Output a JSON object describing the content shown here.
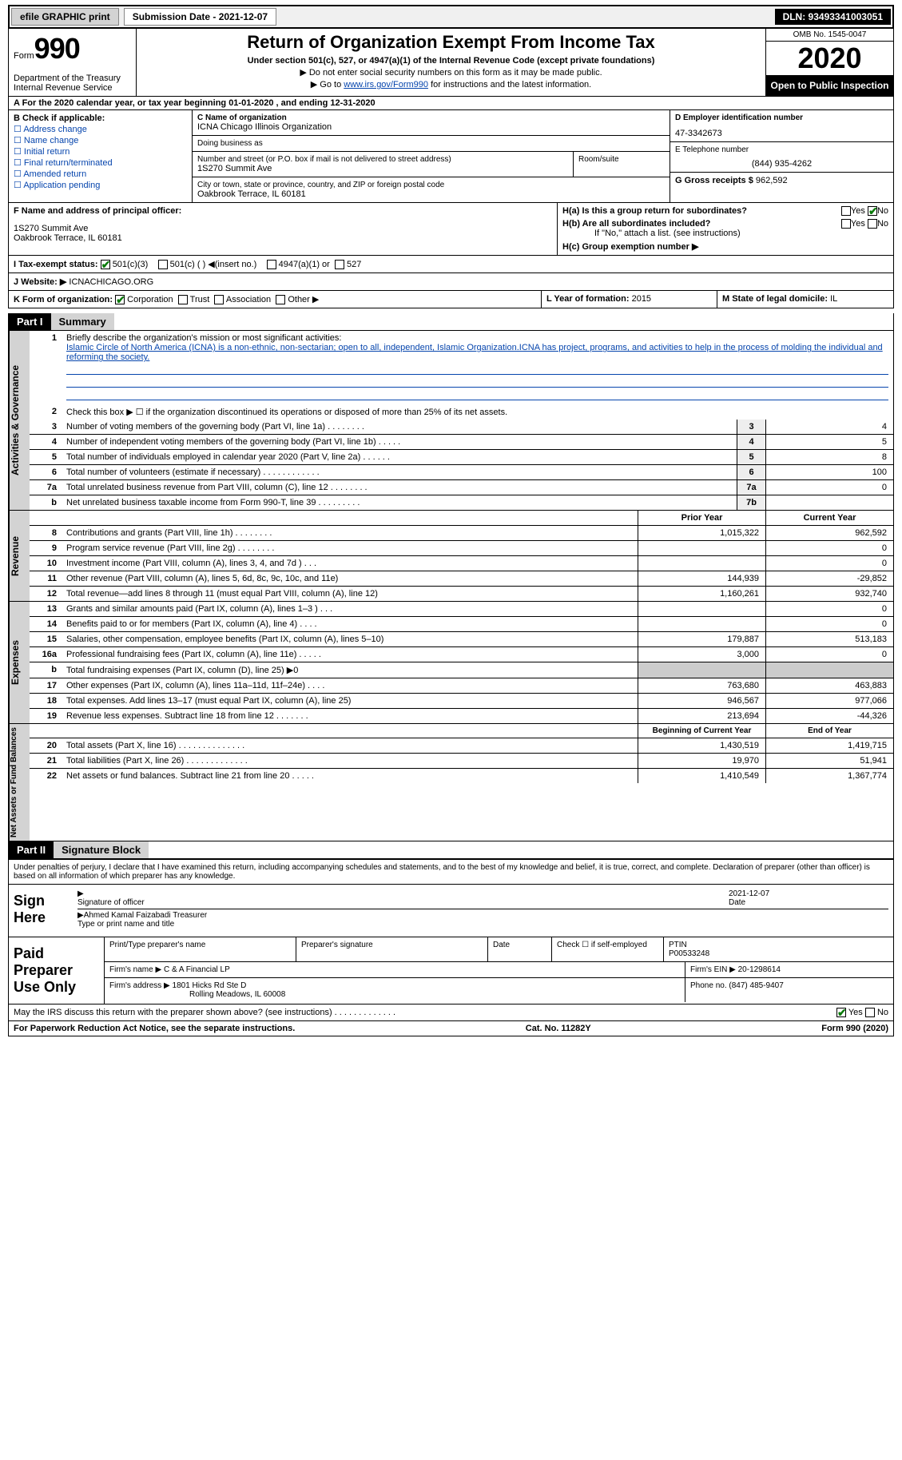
{
  "topbar": {
    "efile_btn": "efile GRAPHIC print",
    "submission_label": "Submission Date - 2021-12-07",
    "dln": "DLN: 93493341003051"
  },
  "header": {
    "form_label": "Form",
    "form_num": "990",
    "dept": "Department of the Treasury\nInternal Revenue Service",
    "title": "Return of Organization Exempt From Income Tax",
    "subtitle": "Under section 501(c), 527, or 4947(a)(1) of the Internal Revenue Code (except private foundations)",
    "note1": "▶ Do not enter social security numbers on this form as it may be made public.",
    "note2_pre": "▶ Go to ",
    "note2_link": "www.irs.gov/Form990",
    "note2_post": " for instructions and the latest information.",
    "omb": "OMB No. 1545-0047",
    "year": "2020",
    "inspection": "Open to Public Inspection"
  },
  "row_a": "A For the 2020 calendar year, or tax year beginning 01-01-2020   , and ending 12-31-2020",
  "col_b": {
    "head": "B Check if applicable:",
    "items": [
      "Address change",
      "Name change",
      "Initial return",
      "Final return/terminated",
      "Amended return",
      "Application pending"
    ]
  },
  "col_c": {
    "name_lbl": "C Name of organization",
    "name": "ICNA Chicago Illinois Organization",
    "dba_lbl": "Doing business as",
    "dba": "",
    "addr_lbl": "Number and street (or P.O. box if mail is not delivered to street address)",
    "addr": "1S270 Summit Ave",
    "room_lbl": "Room/suite",
    "city_lbl": "City or town, state or province, country, and ZIP or foreign postal code",
    "city": "Oakbrook Terrace, IL  60181"
  },
  "col_d": {
    "ein_lbl": "D Employer identification number",
    "ein": "47-3342673",
    "tel_lbl": "E Telephone number",
    "tel": "(844) 935-4262",
    "gross_lbl": "G Gross receipts $",
    "gross": "962,592"
  },
  "row_f": {
    "officer_lbl": "F  Name and address of principal officer:",
    "officer_name": "",
    "officer_addr": "1S270 Summit Ave\nOakbrook Terrace, IL  60181"
  },
  "row_h": {
    "ha": "H(a)  Is this a group return for subordinates?",
    "hb": "H(b)  Are all subordinates included?",
    "hb_note": "If \"No,\" attach a list. (see instructions)",
    "hc": "H(c)  Group exemption number ▶"
  },
  "row_i": {
    "label": "I    Tax-exempt status:",
    "opts": [
      "501(c)(3)",
      "501(c) (  ) ◀(insert no.)",
      "4947(a)(1) or",
      "527"
    ]
  },
  "row_j": {
    "label": "J    Website: ▶",
    "value": "ICNACHICAGO.ORG"
  },
  "row_k": {
    "label": "K Form of organization:",
    "opts": [
      "Corporation",
      "Trust",
      "Association",
      "Other ▶"
    ],
    "l_label": "L Year of formation:",
    "l_val": "2015",
    "m_label": "M State of legal domicile:",
    "m_val": "IL"
  },
  "parts": {
    "p1_hdr": "Part I",
    "p1_title": "Summary",
    "p2_hdr": "Part II",
    "p2_title": "Signature Block"
  },
  "summary": {
    "mission_lbl": "Briefly describe the organization's mission or most significant activities:",
    "mission": "Islamic Circle of North America (ICNA) is a non-ethnic, non-sectarian; open to all, independent, Islamic Organization.ICNA has project, programs, and activities to help in the process of molding the individual and reforming the society.",
    "line2": "Check this box ▶ ☐  if the organization discontinued its operations or disposed of more than 25% of its net assets.",
    "lines_gov": [
      {
        "n": "3",
        "d": "Number of voting members of the governing body (Part VI, line 1a)   .    .    .    .    .    .    .    .",
        "b": "3",
        "v": "4"
      },
      {
        "n": "4",
        "d": "Number of independent voting members of the governing body (Part VI, line 1b)    .    .    .    .    .",
        "b": "4",
        "v": "5"
      },
      {
        "n": "5",
        "d": "Total number of individuals employed in calendar year 2020 (Part V, line 2a)    .    .    .    .    .    .",
        "b": "5",
        "v": "8"
      },
      {
        "n": "6",
        "d": "Total number of volunteers (estimate if necessary)    .    .    .    .    .    .    .    .    .    .    .    .",
        "b": "6",
        "v": "100"
      },
      {
        "n": "7a",
        "d": "Total unrelated business revenue from Part VIII, column (C), line 12    .    .    .    .    .    .    .    .",
        "b": "7a",
        "v": "0"
      },
      {
        "n": "b",
        "d": "Net unrelated business taxable income from Form 990-T, line 39    .    .    .    .    .    .    .    .    .",
        "b": "7b",
        "v": ""
      }
    ],
    "col_hdr_prior": "Prior Year",
    "col_hdr_current": "Current Year",
    "lines_rev": [
      {
        "n": "8",
        "d": "Contributions and grants (Part VIII, line 1h)    .    .    .    .    .    .    .    .",
        "py": "1,015,322",
        "cy": "962,592"
      },
      {
        "n": "9",
        "d": "Program service revenue (Part VIII, line 2g)    .    .    .    .    .    .    .    .",
        "py": "",
        "cy": "0"
      },
      {
        "n": "10",
        "d": "Investment income (Part VIII, column (A), lines 3, 4, and 7d )    .    .    .",
        "py": "",
        "cy": "0"
      },
      {
        "n": "11",
        "d": "Other revenue (Part VIII, column (A), lines 5, 6d, 8c, 9c, 10c, and 11e)",
        "py": "144,939",
        "cy": "-29,852"
      },
      {
        "n": "12",
        "d": "Total revenue—add lines 8 through 11 (must equal Part VIII, column (A), line 12)",
        "py": "1,160,261",
        "cy": "932,740"
      }
    ],
    "lines_exp": [
      {
        "n": "13",
        "d": "Grants and similar amounts paid (Part IX, column (A), lines 1–3 )   .    .    .",
        "py": "",
        "cy": "0"
      },
      {
        "n": "14",
        "d": "Benefits paid to or for members (Part IX, column (A), line 4)    .    .    .    .",
        "py": "",
        "cy": "0"
      },
      {
        "n": "15",
        "d": "Salaries, other compensation, employee benefits (Part IX, column (A), lines 5–10)",
        "py": "179,887",
        "cy": "513,183"
      },
      {
        "n": "16a",
        "d": "Professional fundraising fees (Part IX, column (A), line 11e)    .    .    .    .    .",
        "py": "3,000",
        "cy": "0"
      },
      {
        "n": "b",
        "d": "Total fundraising expenses (Part IX, column (D), line 25) ▶0",
        "py": "__SHADE__",
        "cy": "__SHADE__"
      },
      {
        "n": "17",
        "d": "Other expenses (Part IX, column (A), lines 11a–11d, 11f–24e)    .    .    .    .",
        "py": "763,680",
        "cy": "463,883"
      },
      {
        "n": "18",
        "d": "Total expenses. Add lines 13–17 (must equal Part IX, column (A), line 25)",
        "py": "946,567",
        "cy": "977,066"
      },
      {
        "n": "19",
        "d": "Revenue less expenses. Subtract line 18 from line 12   .    .    .    .    .    .    .",
        "py": "213,694",
        "cy": "-44,326"
      }
    ],
    "col_hdr_begin": "Beginning of Current Year",
    "col_hdr_end": "End of Year",
    "lines_net": [
      {
        "n": "20",
        "d": "Total assets (Part X, line 16)    .    .    .    .    .    .    .    .    .    .    .    .    .    .",
        "py": "1,430,519",
        "cy": "1,419,715"
      },
      {
        "n": "21",
        "d": "Total liabilities (Part X, line 26)    .    .    .    .    .    .    .    .    .    .    .    .    .",
        "py": "19,970",
        "cy": "51,941"
      },
      {
        "n": "22",
        "d": "Net assets or fund balances. Subtract line 21 from line 20    .    .    .    .    .",
        "py": "1,410,549",
        "cy": "1,367,774"
      }
    ]
  },
  "vtabs": {
    "gov": "Activities & Governance",
    "rev": "Revenue",
    "exp": "Expenses",
    "net": "Net Assets or Fund Balances"
  },
  "signature": {
    "declaration": "Under penalties of perjury, I declare that I have examined this return, including accompanying schedules and statements, and to the best of my knowledge and belief, it is true, correct, and complete. Declaration of preparer (other than officer) is based on all information of which preparer has any knowledge.",
    "sign_here": "Sign Here",
    "sig_lbl": "Signature of officer",
    "date_lbl": "Date",
    "date_val": "2021-12-07",
    "name": "Ahmed Kamal Faizabadi  Treasurer",
    "name_lbl": "Type or print name and title"
  },
  "preparer": {
    "label": "Paid Preparer Use Only",
    "h1": "Print/Type preparer's name",
    "h2": "Preparer's signature",
    "h3": "Date",
    "h4_pre": "Check ☐  if self-employed",
    "h5": "PTIN",
    "ptin": "P00533248",
    "firm_name_lbl": "Firm's name    ▶",
    "firm_name": "C & A Financial LP",
    "firm_ein_lbl": "Firm's EIN ▶",
    "firm_ein": "20-1298614",
    "firm_addr_lbl": "Firm's address ▶",
    "firm_addr": "1801 Hicks Rd Ste D",
    "firm_city": "Rolling Meadows, IL  60008",
    "phone_lbl": "Phone no.",
    "phone": "(847) 485-9407"
  },
  "discuss": {
    "q": "May the IRS discuss this return with the preparer shown above? (see instructions)    .    .    .    .    .    .    .    .    .    .    .    .    .",
    "yes": "Yes",
    "no": "No"
  },
  "footer": {
    "left": "For Paperwork Reduction Act Notice, see the separate instructions.",
    "mid": "Cat. No. 11282Y",
    "right": "Form 990 (2020)"
  }
}
